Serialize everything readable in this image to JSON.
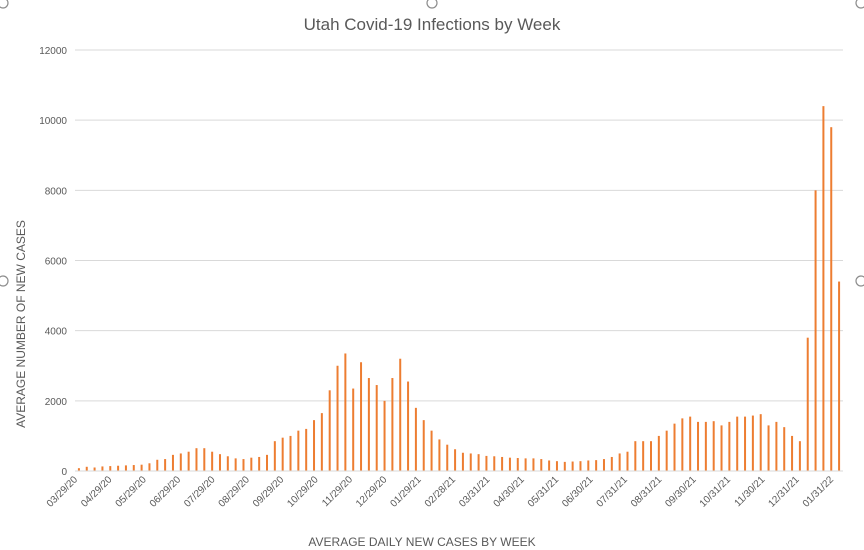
{
  "chart_data": {
    "type": "bar",
    "title": "Utah Covid-19 Infections by Week",
    "xlabel": "AVERAGE DAILY NEW CASES BY WEEK",
    "ylabel": "AVERAGE NUMBER OF NEW  CASES",
    "ylim": [
      0,
      12000
    ],
    "yticks": [
      0,
      2000,
      4000,
      6000,
      8000,
      10000,
      12000
    ],
    "grid": true,
    "legend": "none",
    "bar_color": "#ED7D31",
    "x_tick_labels": [
      "03/29/20",
      "04/29/20",
      "05/29/20",
      "06/29/20",
      "07/29/20",
      "08/29/20",
      "09/29/20",
      "10/29/20",
      "11/29/20",
      "12/29/20",
      "01/29/21",
      "02/28/21",
      "03/31/21",
      "04/30/21",
      "05/31/21",
      "06/30/21",
      "07/31/21",
      "08/31/21",
      "09/30/21",
      "10/31/21",
      "11/30/21",
      "12/31/21",
      "01/31/22"
    ],
    "values": [
      80,
      120,
      100,
      130,
      140,
      150,
      160,
      170,
      180,
      220,
      320,
      340,
      460,
      500,
      550,
      650,
      650,
      550,
      480,
      420,
      360,
      340,
      380,
      400,
      460,
      850,
      950,
      1000,
      1150,
      1200,
      1450,
      1650,
      2300,
      3000,
      3350,
      2350,
      3100,
      2650,
      2450,
      2000,
      2650,
      3200,
      2550,
      1800,
      1450,
      1150,
      900,
      750,
      620,
      520,
      500,
      480,
      430,
      420,
      400,
      380,
      370,
      360,
      360,
      340,
      300,
      280,
      260,
      270,
      280,
      300,
      310,
      340,
      400,
      500,
      550,
      850,
      850,
      850,
      1000,
      1150,
      1350,
      1500,
      1550,
      1400,
      1400,
      1420,
      1300,
      1400,
      1550,
      1550,
      1580,
      1620,
      1300,
      1400,
      1250,
      1000,
      850,
      3800,
      8000,
      10400,
      9800,
      5400
    ]
  }
}
